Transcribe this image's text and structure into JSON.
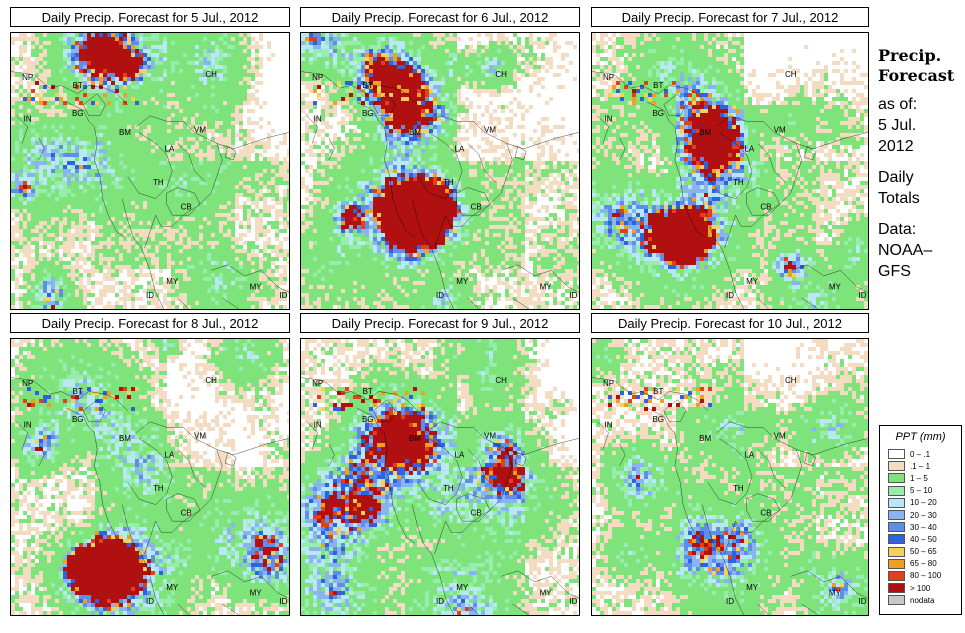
{
  "panels": [
    {
      "title": "Daily Precip. Forecast for  5 Jul., 2012"
    },
    {
      "title": "Daily Precip. Forecast for  6 Jul., 2012"
    },
    {
      "title": "Daily Precip. Forecast for  7 Jul., 2012"
    },
    {
      "title": "Daily Precip. Forecast for  8 Jul., 2012"
    },
    {
      "title": "Daily Precip. Forecast for  9 Jul., 2012"
    },
    {
      "title": "Daily Precip. Forecast for  10 Jul., 2012"
    }
  ],
  "country_labels": [
    "NP",
    "BT",
    "IN",
    "BG",
    "BM",
    "CH",
    "VM",
    "LA",
    "TH",
    "CB",
    "MY",
    "ID",
    "MY",
    "ID"
  ],
  "sidebar": {
    "heading_line1": "Precip.",
    "heading_line2": "Forecast",
    "line1": "as of:",
    "line2": "5 Jul.",
    "line3": "2012",
    "line4": "Daily",
    "line5": "Totals",
    "line6": "Data:",
    "line7": "NOAA–",
    "line8": "GFS"
  },
  "legend": {
    "title": "PPT (mm)",
    "items": [
      {
        "label": "0 – .1",
        "color": "#ffffff"
      },
      {
        "label": ".1 – 1",
        "color": "#f3dcc2"
      },
      {
        "label": "1 – 5",
        "color": "#7fe37c"
      },
      {
        "label": "5 – 10",
        "color": "#97ecaf"
      },
      {
        "label": "10 – 20",
        "color": "#b8e8f3"
      },
      {
        "label": "20 – 30",
        "color": "#8ab4ef"
      },
      {
        "label": "30 – 40",
        "color": "#5e8ee8"
      },
      {
        "label": "40 – 50",
        "color": "#2f62dc"
      },
      {
        "label": "50 – 65",
        "color": "#f4d060"
      },
      {
        "label": "65 – 80",
        "color": "#f0a020"
      },
      {
        "label": "80 – 100",
        "color": "#e0401a"
      },
      {
        "label": "> 100",
        "color": "#b01010"
      },
      {
        "label": "nodata",
        "color": "#c8c8c8"
      }
    ]
  }
}
